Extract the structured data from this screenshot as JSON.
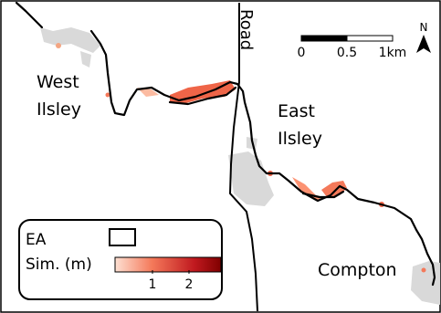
{
  "map": {
    "places": [
      {
        "id": "west",
        "lines": [
          "West",
          "Ilsley"
        ]
      },
      {
        "id": "east",
        "lines": [
          "East",
          "Ilsley"
        ]
      },
      {
        "id": "compton",
        "lines": [
          "Compton"
        ]
      }
    ],
    "road_label": "Road",
    "north_label": "N",
    "scale_bar": {
      "labels": [
        "0",
        "0.5",
        "1km"
      ]
    },
    "legend": {
      "ea_label": "EA",
      "sim_label": "Sim. (m)",
      "colorbar_ticks": [
        "1",
        "2"
      ],
      "colorbar_colors": [
        "#fde0d2",
        "#f4795a",
        "#c0191f",
        "#7f0000"
      ]
    },
    "colors": {
      "settlement": "#d9d9d9",
      "outline": "#000000",
      "flood": "#ef6548"
    }
  }
}
